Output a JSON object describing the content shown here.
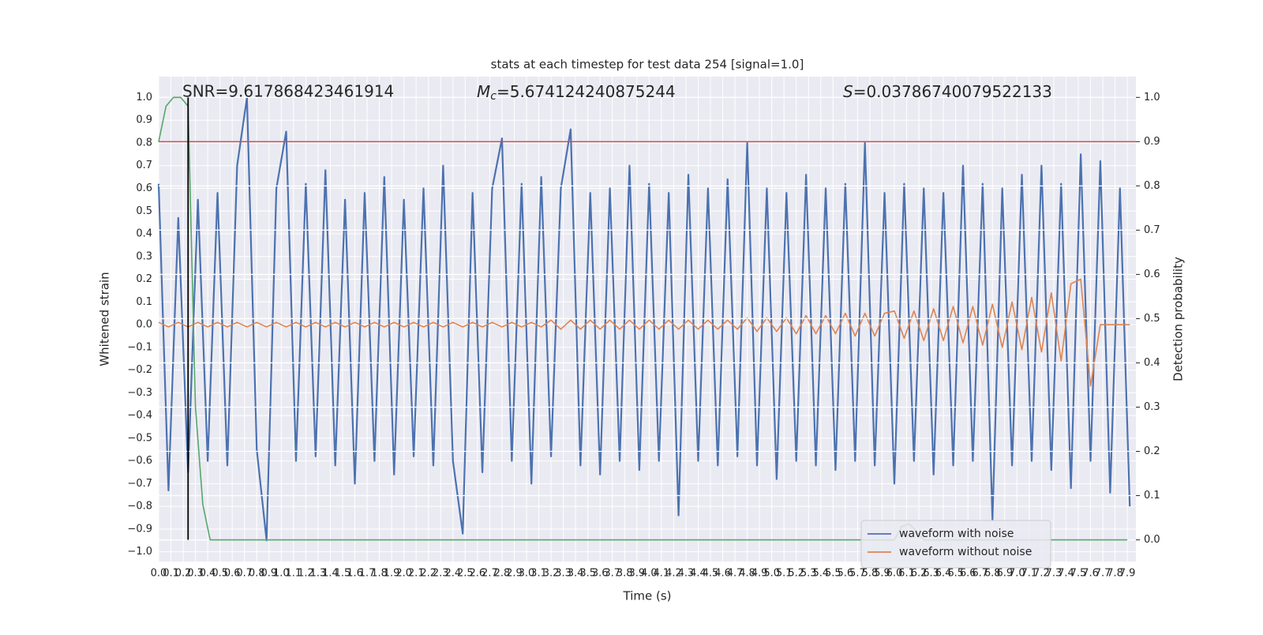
{
  "chart_data": {
    "type": "line",
    "title": "stats at each timestep for test data 254 [signal=1.0]",
    "xlabel": "Time (s)",
    "ylabel": "Whitened strain",
    "y2label": "Detection probability",
    "annotations": [
      {
        "text": "SNR=9.617868423461914"
      },
      {
        "symbol": "M",
        "subscript": "c",
        "text": "=5.674124240875244"
      },
      {
        "symbol": "S",
        "text": "=0.03786740079522133"
      }
    ],
    "grid": true,
    "legend": "lower right",
    "xlim": [
      0,
      7.97
    ],
    "ylim": [
      -1.043,
      1.092
    ],
    "y2lim": [
      -0.049,
      1.047
    ],
    "xticks": [
      {
        "value": 0,
        "label": "0.0"
      },
      0.1,
      0.2,
      0.3,
      0.4,
      0.5,
      0.6,
      0.7,
      0.8,
      0.9,
      {
        "value": 1,
        "label": "1.0"
      },
      1.1,
      1.2,
      1.3,
      1.4,
      1.5,
      1.6,
      1.7,
      1.8,
      1.9,
      {
        "value": 2,
        "label": "2.0"
      },
      2.1,
      2.2,
      2.3,
      2.4,
      2.5,
      2.6,
      2.7,
      2.8,
      2.9,
      {
        "value": 3,
        "label": "3.0"
      },
      3.1,
      3.2,
      3.3,
      3.4,
      3.5,
      3.6,
      3.7,
      3.8,
      3.9,
      {
        "value": 4,
        "label": "4.0"
      },
      4.1,
      4.2,
      4.3,
      4.4,
      4.5,
      4.6,
      4.7,
      4.8,
      4.9,
      {
        "value": 5,
        "label": "5.0"
      },
      5.1,
      5.2,
      5.3,
      5.4,
      5.5,
      5.6,
      5.7,
      5.8,
      5.9,
      {
        "value": 6,
        "label": "6.0"
      },
      6.1,
      6.2,
      6.3,
      6.4,
      6.5,
      6.6,
      6.7,
      6.8,
      6.9,
      {
        "value": 7,
        "label": "7.0"
      },
      7.1,
      7.2,
      7.3,
      7.4,
      7.5,
      7.6,
      7.7,
      7.8,
      7.9
    ],
    "yticks": [
      {
        "value": -1,
        "label": "−1.0"
      },
      {
        "value": -0.9,
        "label": "−0.9"
      },
      {
        "value": -0.8,
        "label": "−0.8"
      },
      {
        "value": -0.7,
        "label": "−0.7"
      },
      {
        "value": -0.6,
        "label": "−0.6"
      },
      {
        "value": -0.5,
        "label": "−0.5"
      },
      {
        "value": -0.4,
        "label": "−0.4"
      },
      {
        "value": -0.3,
        "label": "−0.3"
      },
      {
        "value": -0.2,
        "label": "−0.2"
      },
      {
        "value": -0.1,
        "label": "−0.1"
      },
      {
        "value": 0,
        "label": "0.0"
      },
      0.1,
      0.2,
      0.3,
      0.4,
      0.5,
      0.6,
      0.7,
      0.8,
      0.9,
      {
        "value": 1,
        "label": "1.0"
      }
    ],
    "y2ticks": [
      {
        "value": 0,
        "label": "0.0"
      },
      0.1,
      0.2,
      0.3,
      0.4,
      0.5,
      0.6,
      0.7,
      0.8,
      0.9,
      {
        "value": 1,
        "label": "1.0"
      }
    ],
    "x": [
      0,
      0.08,
      0.16,
      0.24,
      0.32,
      0.4,
      0.48,
      0.56,
      0.64,
      0.72,
      0.8,
      0.88,
      0.96,
      1.04,
      1.12,
      1.2,
      1.28,
      1.36,
      1.44,
      1.52,
      1.6,
      1.68,
      1.76,
      1.84,
      1.92,
      2,
      2.08,
      2.16,
      2.24,
      2.32,
      2.4,
      2.48,
      2.56,
      2.64,
      2.72,
      2.8,
      2.88,
      2.96,
      3.04,
      3.12,
      3.2,
      3.28,
      3.36,
      3.44,
      3.52,
      3.6,
      3.68,
      3.76,
      3.84,
      3.92,
      4,
      4.08,
      4.16,
      4.24,
      4.32,
      4.4,
      4.48,
      4.56,
      4.64,
      4.72,
      4.8,
      4.88,
      4.96,
      5.04,
      5.12,
      5.2,
      5.28,
      5.36,
      5.44,
      5.52,
      5.6,
      5.68,
      5.76,
      5.84,
      5.92,
      6,
      6.08,
      6.16,
      6.24,
      6.32,
      6.4,
      6.48,
      6.56,
      6.64,
      6.72,
      6.8,
      6.88,
      6.96,
      7.04,
      7.12,
      7.2,
      7.28,
      7.36,
      7.44,
      7.52,
      7.6,
      7.68,
      7.76,
      7.84,
      7.92
    ],
    "series": [
      {
        "name": "waveform with noise",
        "color": "#4c72b0",
        "values": [
          0.62,
          -0.73,
          0.47,
          -0.65,
          0.55,
          -0.6,
          0.58,
          -0.62,
          0.7,
          1.0,
          -0.55,
          -0.95,
          0.6,
          0.85,
          -0.6,
          0.62,
          -0.58,
          0.68,
          -0.62,
          0.55,
          -0.7,
          0.58,
          -0.6,
          0.65,
          -0.66,
          0.55,
          -0.58,
          0.6,
          -0.62,
          0.7,
          -0.6,
          -0.92,
          0.58,
          -0.65,
          0.6,
          0.82,
          -0.6,
          0.62,
          -0.7,
          0.65,
          -0.58,
          0.6,
          0.86,
          -0.62,
          0.58,
          -0.66,
          0.6,
          -0.6,
          0.7,
          -0.64,
          0.62,
          -0.6,
          0.58,
          -0.84,
          0.66,
          -0.6,
          0.6,
          -0.62,
          0.64,
          -0.58,
          0.8,
          -0.62,
          0.6,
          -0.68,
          0.58,
          -0.6,
          0.66,
          -0.62,
          0.6,
          -0.64,
          0.62,
          -0.6,
          0.8,
          -0.62,
          0.58,
          -0.7,
          0.62,
          -0.6,
          0.6,
          -0.66,
          0.58,
          -0.62,
          0.7,
          -0.6,
          0.62,
          -0.86,
          0.6,
          -0.62,
          0.66,
          -0.6,
          0.7,
          -0.64,
          0.62,
          -0.72,
          0.75,
          -0.6,
          0.72,
          -0.74,
          0.6,
          -0.8
        ]
      },
      {
        "name": "waveform without noise",
        "color": "#dd8452",
        "values": [
          0.01,
          -0.01,
          0.01,
          -0.01,
          0.01,
          -0.01,
          0.01,
          -0.01,
          0.01,
          -0.01,
          0.01,
          -0.01,
          0.01,
          -0.01,
          0.01,
          -0.01,
          0.01,
          -0.01,
          0.01,
          -0.01,
          0.01,
          -0.01,
          0.01,
          -0.01,
          0.01,
          -0.01,
          0.01,
          -0.01,
          0.01,
          -0.01,
          0.01,
          -0.01,
          0.01,
          -0.01,
          0.01,
          -0.01,
          0.01,
          -0.01,
          0.01,
          -0.01,
          0.02,
          -0.02,
          0.02,
          -0.02,
          0.02,
          -0.02,
          0.02,
          -0.02,
          0.02,
          -0.02,
          0.02,
          -0.02,
          0.02,
          -0.02,
          0.02,
          -0.02,
          0.02,
          -0.02,
          0.02,
          -0.02,
          0.03,
          -0.03,
          0.03,
          -0.03,
          0.03,
          -0.04,
          0.04,
          -0.04,
          0.04,
          -0.04,
          0.05,
          -0.05,
          0.05,
          -0.05,
          0.05,
          0.06,
          -0.06,
          0.06,
          -0.07,
          0.07,
          -0.07,
          0.08,
          -0.08,
          0.08,
          -0.09,
          0.09,
          -0.1,
          0.1,
          -0.11,
          0.12,
          -0.12,
          0.14,
          -0.16,
          0.18,
          0.2,
          -0.27,
          0,
          0,
          0,
          0
        ]
      },
      {
        "name": "detection probability",
        "color": "#55a868",
        "axis": "y2",
        "legend": false,
        "x": [
          0,
          0.06,
          0.12,
          0.18,
          0.24,
          0.3,
          0.36,
          0.42,
          0.5,
          6.0,
          6.06,
          6.12,
          6.18,
          6.24,
          7.9
        ],
        "values": [
          0.9,
          0.98,
          1.0,
          1.0,
          0.98,
          0.3,
          0.08,
          0.0,
          0.0,
          0.0,
          0.03,
          0.036,
          0.02,
          0.0,
          0.0
        ]
      }
    ],
    "threshold": {
      "value": 0.9,
      "axis": "y2",
      "color": "#c44e52"
    },
    "vline": {
      "x": 0.24,
      "ymin": 0,
      "ymax": 1,
      "axis": "y2",
      "color": "#000000"
    }
  }
}
